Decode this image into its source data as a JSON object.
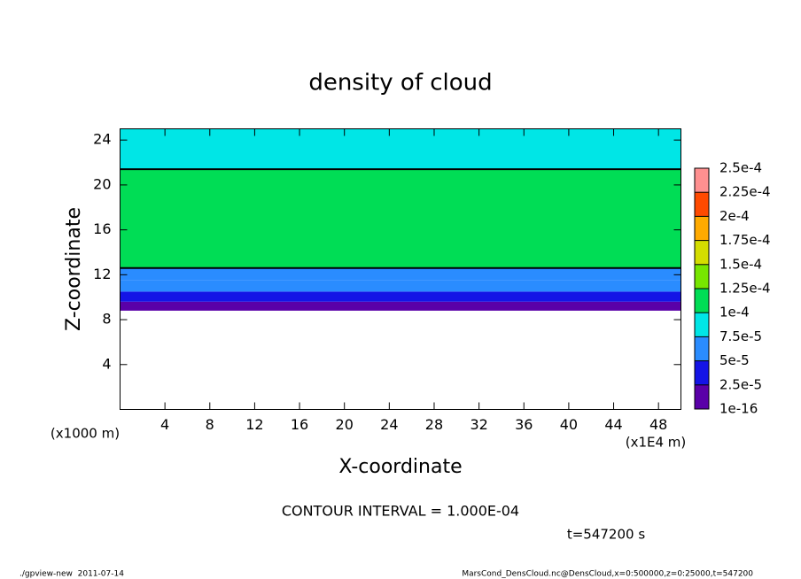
{
  "chart_data": {
    "type": "contour",
    "title": "density of cloud",
    "x_label": "X-coordinate",
    "y_label": "Z-coordinate",
    "x_unit": "(x1E4 m)",
    "y_unit": "(x1000 m)",
    "xlim": [
      0,
      50
    ],
    "ylim": [
      0,
      25
    ],
    "xticks": [
      4,
      8,
      12,
      16,
      20,
      24,
      28,
      32,
      36,
      40,
      44,
      48
    ],
    "yticks": [
      4,
      8,
      12,
      16,
      20,
      24
    ],
    "z_edges": [
      8.8,
      9.6,
      10.5,
      11.5,
      12.6,
      21.4,
      22.2,
      25
    ],
    "values": [
      1e-05,
      4e-05,
      5.5e-05,
      7e-05,
      0.00011,
      9e-05,
      8e-05
    ],
    "contour_level": 0.0001,
    "colorbar_ticks": [
      1e-16,
      {
        "value": 2.5e-05,
        "label": "2.5e-5"
      },
      {
        "value": 5e-05,
        "label": "5e-5"
      },
      {
        "value": 7.5e-05,
        "label": "7.5e-5"
      },
      {
        "value": 0.0001,
        "label": "1e-4"
      },
      {
        "value": 0.000125,
        "label": "1.25e-4"
      },
      {
        "value": 0.00015,
        "label": "1.5e-4"
      },
      {
        "value": 0.000175,
        "label": "1.75e-4"
      },
      {
        "value": 0.0002,
        "label": "2e-4"
      },
      {
        "value": 0.000225,
        "label": "2.25e-4"
      },
      {
        "value": 0.00025,
        "label": "2.5e-4"
      }
    ],
    "colors": [
      "#5a00a8",
      "#1414e6",
      "#2a8cff",
      "#00e6e6",
      "#00dd55",
      "#77e600",
      "#d4dd00",
      "#ffaa00",
      "#ff4a00",
      "#ff9090"
    ],
    "contour_interval_text": "CONTOUR INTERVAL = 1.000E-04",
    "time_text": "t=547200 s",
    "footer_left": "./gpview-new  2011-07-14",
    "footer_right": "MarsCond_DensCloud.nc@DensCloud,x=0:500000,z=0:25000,t=547200"
  }
}
